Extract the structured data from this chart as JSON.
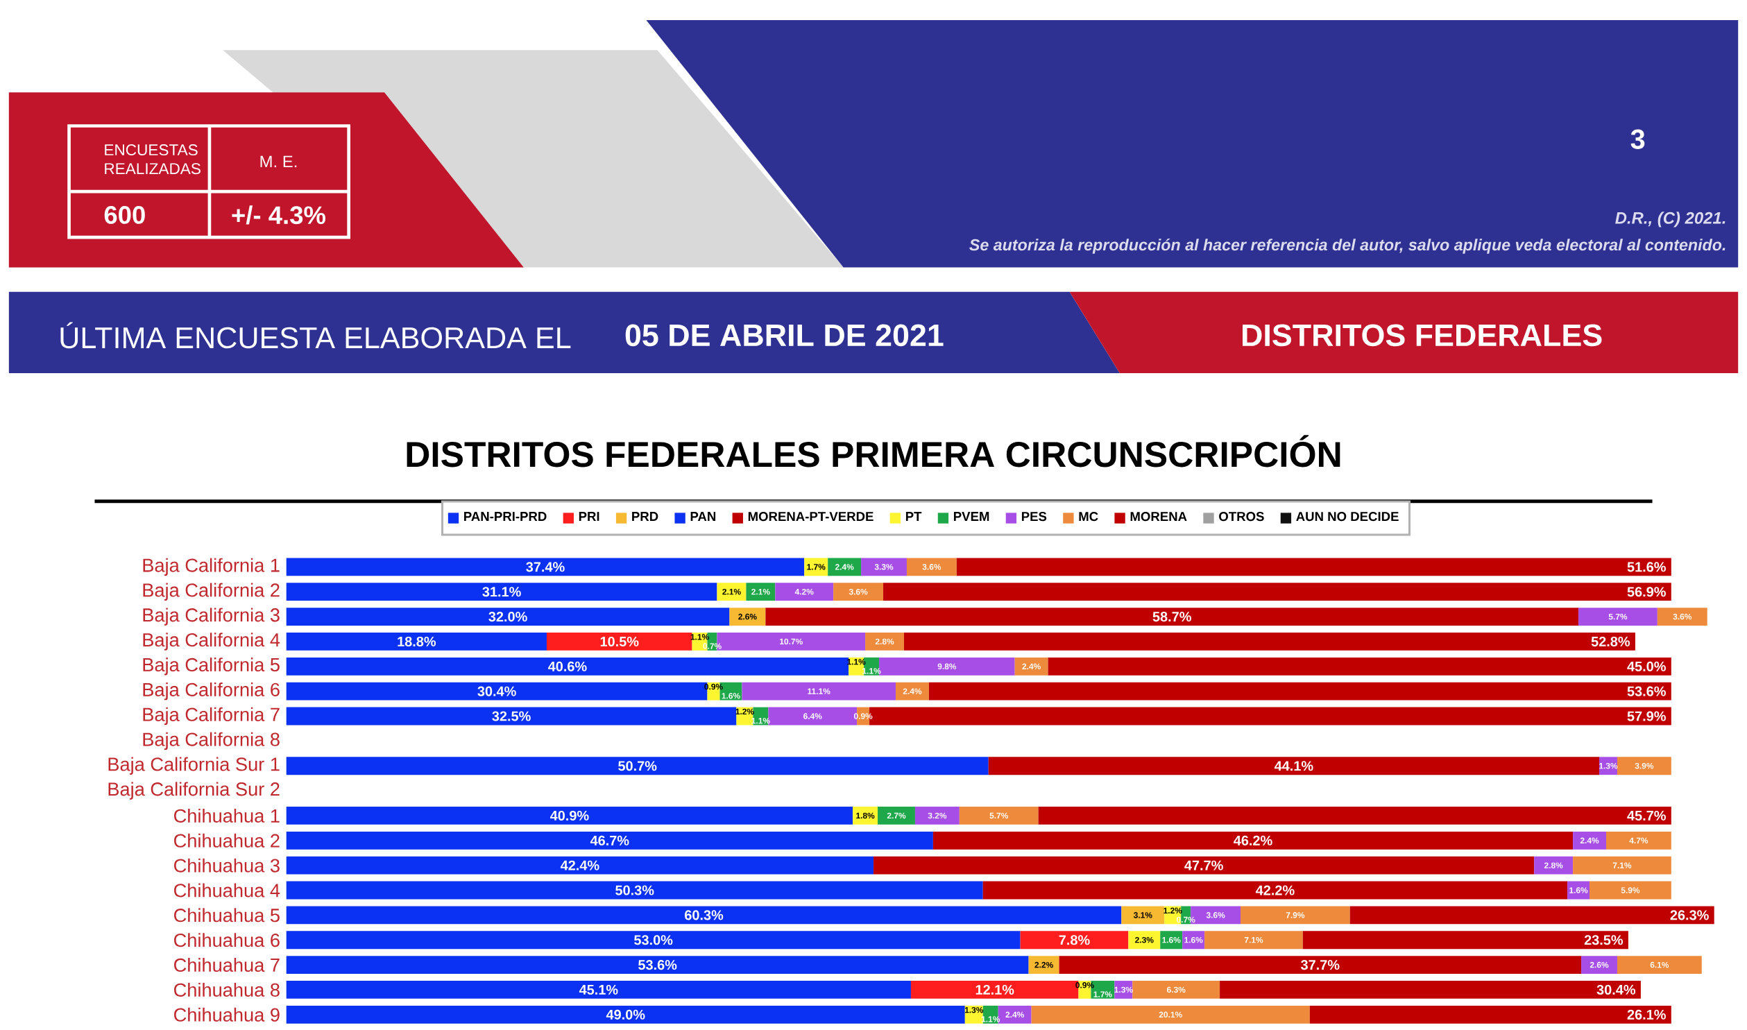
{
  "chart_data": {
    "type": "bar",
    "orientation": "horizontal",
    "stacked": true,
    "legend": "top",
    "tick_labels": "y",
    "title": "DISTRITOS FEDERALES PRIMERA CIRCUNSCRIPCIÓN",
    "annotations": [
      "ENCUESTAS REALIZADAS",
      "M. E.",
      "600",
      "+/- 4.3%",
      "3",
      "D.R., (C) 2021.",
      "Se autoriza la reproducción al hacer referencia del autor, salvo aplique veda electoral al contenido.",
      "ÚLTIMA ENCUESTA ELABORADA EL",
      "05 DE ABRIL DE 2021",
      "DISTRITOS FEDERALES"
    ],
    "categories": [
      "Baja California 1",
      "Baja California 2",
      "Baja California 3",
      "Baja California 4",
      "Baja California 5",
      "Baja California 6",
      "Baja California 7",
      "Baja California 8",
      "Baja California Sur 1",
      "Baja California Sur 2",
      "Chihuahua 1",
      "Chihuahua 2",
      "Chihuahua 3",
      "Chihuahua 4",
      "Chihuahua 5",
      "Chihuahua 6",
      "Chihuahua 7",
      "Chihuahua 8",
      "Chihuahua 9"
    ],
    "series": [
      {
        "name": "PAN-PRI-PRD",
        "color": "#0b31f2",
        "values": [
          37.4,
          31.1,
          32.0,
          18.8,
          40.6,
          30.4,
          32.5,
          null,
          50.7,
          null,
          40.9,
          46.7,
          42.4,
          50.3,
          60.3,
          53.0,
          53.6,
          45.1,
          49.0
        ],
        "value_labels": [
          "37.4%",
          "31.1%",
          "32.0%",
          "18.8%",
          "40.6%",
          "30.4%",
          "32.5%",
          null,
          "50.7%",
          null,
          "40.9%",
          "46.7%",
          "42.4%",
          "50.3%",
          "60.3%",
          "53.0%",
          "53.6%",
          "45.1%",
          "49.0%"
        ]
      },
      {
        "name": "PRI",
        "color": "#fe1e1e",
        "values": [
          null,
          null,
          null,
          10.5,
          null,
          null,
          null,
          null,
          null,
          null,
          null,
          null,
          null,
          null,
          null,
          7.8,
          null,
          12.1,
          null
        ],
        "value_labels": [
          null,
          null,
          null,
          "10.5%",
          null,
          null,
          null,
          null,
          null,
          null,
          null,
          null,
          null,
          null,
          null,
          "7.8%",
          null,
          "12.1%",
          null
        ]
      },
      {
        "name": "PRD",
        "color": "#f8b932",
        "values": [
          null,
          null,
          2.6,
          null,
          null,
          null,
          null,
          null,
          null,
          null,
          null,
          null,
          null,
          null,
          3.1,
          null,
          2.2,
          null,
          null
        ],
        "value_labels": [
          null,
          null,
          "2.6%",
          null,
          null,
          null,
          null,
          null,
          null,
          null,
          null,
          null,
          null,
          null,
          "3.1%",
          null,
          "2.2%",
          null,
          null
        ]
      },
      {
        "name": "PAN",
        "color": "#0b31f2",
        "values": [
          null,
          null,
          null,
          null,
          null,
          null,
          null,
          null,
          null,
          null,
          null,
          null,
          null,
          null,
          null,
          null,
          null,
          null,
          null
        ]
      },
      {
        "name": "MORENA-PT-VERDE",
        "color": "#c00000",
        "values": [
          null,
          null,
          58.7,
          null,
          null,
          null,
          null,
          null,
          44.1,
          null,
          null,
          46.2,
          47.7,
          42.2,
          null,
          null,
          37.7,
          null,
          null
        ],
        "value_labels": [
          null,
          null,
          "58.7%",
          null,
          null,
          null,
          null,
          null,
          "44.1%",
          null,
          null,
          "46.2%",
          "47.7%",
          "42.2%",
          null,
          null,
          "37.7%",
          null,
          null
        ]
      },
      {
        "name": "PT",
        "color": "#fef531",
        "values": [
          1.7,
          2.1,
          null,
          1.1,
          1.1,
          0.9,
          1.2,
          null,
          null,
          null,
          1.8,
          null,
          null,
          null,
          1.2,
          2.3,
          null,
          0.9,
          1.3
        ],
        "value_labels": [
          "1.7%",
          "2.1%",
          null,
          "1.1%",
          "1.1%",
          "0.9%",
          "1.2%",
          null,
          null,
          null,
          "1.8%",
          null,
          null,
          null,
          "1.2%",
          "2.3%",
          null,
          "0.9%",
          "1.3%"
        ]
      },
      {
        "name": "PVEM",
        "color": "#1fa84a",
        "values": [
          2.4,
          2.1,
          null,
          0.7,
          1.1,
          1.6,
          1.1,
          null,
          null,
          null,
          2.7,
          null,
          null,
          null,
          0.7,
          1.6,
          null,
          1.7,
          1.1
        ],
        "value_labels": [
          "2.4%",
          "2.1%",
          null,
          "0.7%",
          "1.1%",
          "1.6%",
          "1.1%",
          null,
          null,
          null,
          "2.7%",
          null,
          null,
          null,
          "0.7%",
          "1.6%",
          null,
          "1.7%",
          "1.1%"
        ]
      },
      {
        "name": "PES",
        "color": "#a64ee6",
        "values": [
          3.3,
          4.2,
          5.7,
          10.7,
          9.8,
          11.1,
          6.4,
          null,
          1.3,
          null,
          3.2,
          2.4,
          2.8,
          1.6,
          3.6,
          1.6,
          2.6,
          1.3,
          2.4
        ],
        "value_labels": [
          "3.3%",
          "4.2%",
          "5.7%",
          "10.7%",
          "9.8%",
          "11.1%",
          "6.4%",
          null,
          "1.3%",
          null,
          "3.2%",
          "2.4%",
          "2.8%",
          "1.6%",
          "3.6%",
          "1.6%",
          "2.6%",
          "1.3%",
          "2.4%"
        ]
      },
      {
        "name": "MC",
        "color": "#ee8a3c",
        "values": [
          3.6,
          3.6,
          3.6,
          2.8,
          2.4,
          2.4,
          0.9,
          null,
          3.9,
          null,
          5.7,
          4.7,
          7.1,
          5.9,
          7.9,
          7.1,
          6.1,
          6.3,
          20.1
        ],
        "value_labels": [
          "3.6%",
          "3.6%",
          "3.6%",
          "2.8%",
          "2.4%",
          "2.4%",
          "0.9%",
          null,
          "3.9%",
          null,
          "5.7%",
          "4.7%",
          "7.1%",
          "5.9%",
          "7.9%",
          "7.1%",
          "6.1%",
          "6.3%",
          "20.1%"
        ]
      },
      {
        "name": "MORENA",
        "color": "#c00000",
        "values": [
          51.6,
          56.9,
          null,
          52.8,
          45.0,
          53.6,
          57.9,
          null,
          null,
          null,
          45.7,
          null,
          null,
          null,
          26.3,
          23.5,
          null,
          30.4,
          26.1
        ],
        "value_labels": [
          "51.6%",
          "56.9%",
          null,
          "52.8%",
          "45.0%",
          "53.6%",
          "57.9%",
          null,
          null,
          null,
          "45.7%",
          null,
          null,
          null,
          "26.3%",
          "23.5%",
          null,
          "30.4%",
          "26.1%"
        ]
      },
      {
        "name": "OTROS",
        "color": "#a0a0a0",
        "values": [
          null,
          null,
          null,
          null,
          null,
          null,
          null,
          null,
          null,
          null,
          null,
          null,
          null,
          null,
          null,
          null,
          null,
          null,
          null
        ]
      },
      {
        "name": "AUN NO DECIDE",
        "color": "#111111",
        "values": [
          null,
          null,
          null,
          null,
          null,
          null,
          null,
          null,
          null,
          null,
          null,
          null,
          null,
          null,
          null,
          null,
          null,
          null,
          null
        ]
      }
    ]
  }
}
